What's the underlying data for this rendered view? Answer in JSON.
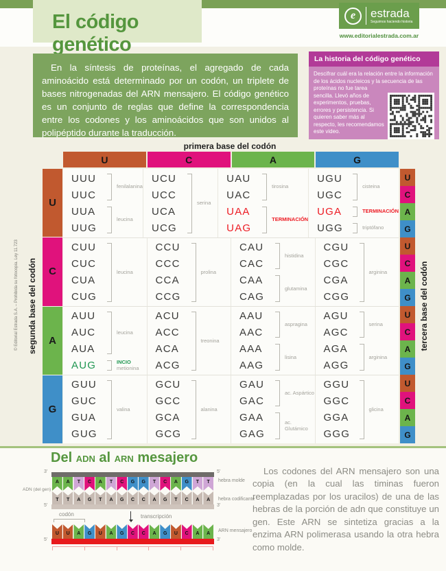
{
  "page_title": "El código genético",
  "brand": {
    "name": "estrada",
    "tagline": "Seguimos haciendo historia",
    "url": "www.editorialestrada.com.ar",
    "green": "#6b9e4c"
  },
  "copyright": "© Editorial Estrada S.A. – Prohibida su fotocopia. Ley 11.723",
  "intro": "En la síntesis de proteínas, el agregado de cada aminoácido está determinado por un codón, un triplete de bases nitrogenadas del ARN mensajero. El código genético es un conjunto de reglas que define la correspondencia entre los codones y los aminoácidos que son unidos al polipéptido durante la traducción.",
  "history_box": {
    "title": "La historia del código genético",
    "body": "Descifrar cuál era la relación entre la información de los ácidos nucleicos y la secuencia de las proteínas no fue tarea sencilla. Llevó años de experimentos, pruebas, errores y persistencia. Si quieren saber más al respecto, les recomendamos este video.",
    "header_color": "#b23a98",
    "body_color": "#ca87bd"
  },
  "codon_table": {
    "axis_top": "primera base del codón",
    "axis_left": "segunda base del codón",
    "axis_right": "tercera base del codón",
    "bases": [
      "U",
      "C",
      "A",
      "G"
    ],
    "base_colors": {
      "U": "#c1592f",
      "C": "#e0127c",
      "A": "#6cb44c",
      "G": "#3f8fc8"
    },
    "stop_color": "#ed1b23",
    "start_color": "#1f9651",
    "rows": [
      {
        "base": "U",
        "cells": [
          {
            "groups": [
              {
                "codons": [
                  "UUU",
                  "UUC"
                ],
                "amino": "fenilalanina"
              },
              {
                "codons": [
                  "UUA",
                  "UUG"
                ],
                "amino": "leucina"
              }
            ]
          },
          {
            "groups": [
              {
                "codons": [
                  "UCU",
                  "UCC",
                  "UCA",
                  "UCG"
                ],
                "amino": "serina"
              }
            ]
          },
          {
            "groups": [
              {
                "codons": [
                  "UAU",
                  "UAC"
                ],
                "amino": "tirosina"
              },
              {
                "codons": [
                  "UAA",
                  "UAG"
                ],
                "amino": "TERMINACIÓN",
                "stop": true
              }
            ]
          },
          {
            "groups": [
              {
                "codons": [
                  "UGU",
                  "UGC"
                ],
                "amino": "cisteina"
              },
              {
                "codons": [
                  "UGA"
                ],
                "amino": "TERMINACIÓN",
                "stop": true
              },
              {
                "codons": [
                  "UGG"
                ],
                "amino": "triptófano"
              }
            ]
          }
        ]
      },
      {
        "base": "C",
        "cells": [
          {
            "groups": [
              {
                "codons": [
                  "CUU",
                  "CUC",
                  "CUA",
                  "CUG"
                ],
                "amino": "leucina"
              }
            ]
          },
          {
            "groups": [
              {
                "codons": [
                  "CCU",
                  "CCC",
                  "CCA",
                  "CCG"
                ],
                "amino": "prolina"
              }
            ]
          },
          {
            "groups": [
              {
                "codons": [
                  "CAU",
                  "CAC"
                ],
                "amino": "histidina"
              },
              {
                "codons": [
                  "CAA",
                  "CAG"
                ],
                "amino": "glutamina"
              }
            ]
          },
          {
            "groups": [
              {
                "codons": [
                  "CGU",
                  "CGC",
                  "CGA",
                  "CGG"
                ],
                "amino": "arginina"
              }
            ]
          }
        ]
      },
      {
        "base": "A",
        "cells": [
          {
            "groups": [
              {
                "codons": [
                  "AUU",
                  "AUC",
                  "AUA"
                ],
                "amino": "leucina"
              },
              {
                "codons": [
                  "AUG"
                ],
                "amino": "metionina",
                "start": true,
                "start_label": "INCIO"
              }
            ]
          },
          {
            "groups": [
              {
                "codons": [
                  "ACU",
                  "ACC",
                  "ACA",
                  "ACG"
                ],
                "amino": "treonina"
              }
            ]
          },
          {
            "groups": [
              {
                "codons": [
                  "AAU",
                  "AAC"
                ],
                "amino": "aspragina"
              },
              {
                "codons": [
                  "AAA",
                  "AAG"
                ],
                "amino": "lisina"
              }
            ]
          },
          {
            "groups": [
              {
                "codons": [
                  "AGU",
                  "AGC"
                ],
                "amino": "serina"
              },
              {
                "codons": [
                  "AGA",
                  "AGG"
                ],
                "amino": "arginina"
              }
            ]
          }
        ]
      },
      {
        "base": "G",
        "cells": [
          {
            "groups": [
              {
                "codons": [
                  "GUU",
                  "GUC",
                  "GUA",
                  "GUG"
                ],
                "amino": "valina"
              }
            ]
          },
          {
            "groups": [
              {
                "codons": [
                  "GCU",
                  "GCC",
                  "GCA",
                  "GCG"
                ],
                "amino": "alanina"
              }
            ]
          },
          {
            "groups": [
              {
                "codons": [
                  "GAU",
                  "GAC"
                ],
                "amino": "ac. Aspártico"
              },
              {
                "codons": [
                  "GAA",
                  "GAG"
                ],
                "amino": "ac. Glutámico"
              }
            ]
          },
          {
            "groups": [
              {
                "codons": [
                  "GGU",
                  "GGC",
                  "GGA",
                  "GGG"
                ],
                "amino": "glicina"
              }
            ]
          }
        ]
      }
    ]
  },
  "transcription": {
    "title_segments": [
      {
        "t": "Del ",
        "small": false
      },
      {
        "t": "ADN",
        "small": true
      },
      {
        "t": " al ",
        "small": false
      },
      {
        "t": "ARN",
        "small": true
      },
      {
        "t": " mesajero",
        "small": false
      }
    ],
    "dna_label": "ADN (del gen)",
    "codon_label": "codón",
    "arrow_label": "transcripción",
    "base_colors": {
      "A": "#6cb44c",
      "T": "#cfa6d6",
      "C": "#e0127c",
      "G": "#3f8fc8",
      "U": "#c1592f"
    },
    "beige_color": "#c7bbb3",
    "strands": [
      {
        "id": "template",
        "sequence": "AATCATCGGTCAGTT",
        "label": "hebra molde",
        "left_end": "3'",
        "right_end": "5'",
        "style": "colored",
        "notch": "bottom"
      },
      {
        "id": "coding",
        "sequence": "TTAGTAGCCAGTCAA",
        "label": "hebra codificante",
        "left_end": "5'",
        "right_end": "3'",
        "style": "beige",
        "notch": "top"
      },
      {
        "id": "mrna",
        "sequence": "UUAGUAGCCAGUCAA",
        "label": "ARN mensajero",
        "left_end": "5'",
        "right_end": "3'",
        "style": "colored",
        "notch": "top"
      }
    ]
  },
  "outro": "Los codones del ARN mensajero son una copia (en la cual las timinas fueron reemplazadas por los uracilos) de una de las hebras de la porción de adn que constituye un gen. Este ARN se sintetiza gracias a la enzima ARN polimerasa usando la otra hebra como molde."
}
